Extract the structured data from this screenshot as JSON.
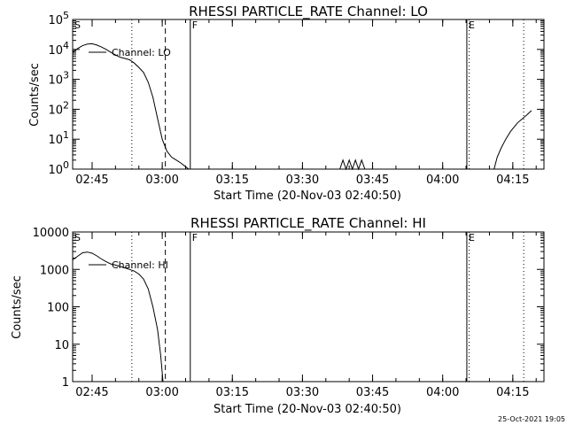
{
  "chart_data": [
    {
      "type": "line",
      "title": "RHESSI PARTICLE_RATE Channel: LO",
      "xlabel": "Start Time (20-Nov-03 02:40:50)",
      "ylabel": "Counts/sec",
      "yscale": "log",
      "ylim": [
        1,
        100000
      ],
      "xlim": [
        "02:40:50",
        "04:21:40"
      ],
      "xticks": [
        "02:45",
        "03:00",
        "03:15",
        "03:30",
        "03:45",
        "04:00",
        "04:15"
      ],
      "yticks": [
        "10^0",
        "10^1",
        "10^2",
        "10^3",
        "10^4",
        "10^5"
      ],
      "legend": "Channel: LO",
      "markers": [
        {
          "label": "S",
          "time": "02:40:50",
          "style": "solid"
        },
        {
          "label": "",
          "time": "02:53:30",
          "style": "dotted"
        },
        {
          "label": "",
          "time": "03:00:40",
          "style": "dashed"
        },
        {
          "label": "F",
          "time": "03:06:00",
          "style": "solid"
        },
        {
          "label": "E",
          "time": "04:05:10",
          "style": "solid"
        },
        {
          "label": "",
          "time": "04:05:40",
          "style": "dotted"
        },
        {
          "label": "",
          "time": "04:17:20",
          "style": "dotted"
        }
      ],
      "series": [
        {
          "name": "Channel: LO",
          "segments": [
            [
              [
                "02:40:50",
                8000
              ],
              [
                "02:42:00",
                11000
              ],
              [
                "02:43:00",
                13500
              ],
              [
                "02:44:00",
                15000
              ],
              [
                "02:45:00",
                15500
              ],
              [
                "02:46:00",
                14000
              ],
              [
                "02:47:00",
                12000
              ],
              [
                "02:48:00",
                10000
              ],
              [
                "02:49:00",
                8000
              ],
              [
                "02:50:00",
                6500
              ],
              [
                "02:51:00",
                5500
              ],
              [
                "02:52:00",
                5000
              ],
              [
                "02:53:00",
                4500
              ],
              [
                "02:54:00",
                3500
              ],
              [
                "02:55:00",
                2500
              ],
              [
                "02:56:00",
                1700
              ],
              [
                "02:57:00",
                800
              ],
              [
                "02:58:00",
                250
              ],
              [
                "02:59:00",
                50
              ],
              [
                "03:00:00",
                10
              ],
              [
                "03:01:00",
                4
              ],
              [
                "03:02:00",
                2.5
              ],
              [
                "03:03:00",
                2
              ],
              [
                "03:04:00",
                1.6
              ],
              [
                "03:05:00",
                1.2
              ],
              [
                "03:05:40",
                1
              ]
            ],
            [
              [
                "03:38:00",
                1
              ],
              [
                "03:38:40",
                2
              ],
              [
                "03:39:20",
                1
              ],
              [
                "03:40:00",
                2
              ],
              [
                "03:40:40",
                1
              ],
              [
                "03:41:20",
                2
              ],
              [
                "03:42:00",
                1
              ],
              [
                "03:42:40",
                2
              ],
              [
                "03:43:20",
                1
              ]
            ],
            [
              [
                "04:11:00",
                1
              ],
              [
                "04:11:40",
                2.5
              ],
              [
                "04:12:30",
                5
              ],
              [
                "04:13:30",
                10
              ],
              [
                "04:14:30",
                18
              ],
              [
                "04:16:00",
                35
              ],
              [
                "04:18:00",
                65
              ],
              [
                "04:19:00",
                90
              ]
            ]
          ]
        }
      ]
    },
    {
      "type": "line",
      "title": "RHESSI PARTICLE_RATE Channel: HI",
      "xlabel": "Start Time (20-Nov-03 02:40:50)",
      "ylabel": "Counts/sec",
      "yscale": "log",
      "ylim": [
        1,
        10000
      ],
      "xlim": [
        "02:40:50",
        "04:21:40"
      ],
      "xticks": [
        "02:45",
        "03:00",
        "03:15",
        "03:30",
        "03:45",
        "04:00",
        "04:15"
      ],
      "yticks": [
        "1",
        "10",
        "100",
        "1000",
        "10000"
      ],
      "legend": "Channel: HI",
      "markers": [
        {
          "label": "S",
          "time": "02:40:50",
          "style": "solid"
        },
        {
          "label": "",
          "time": "02:53:30",
          "style": "dotted"
        },
        {
          "label": "",
          "time": "03:00:40",
          "style": "dashed"
        },
        {
          "label": "F",
          "time": "03:06:00",
          "style": "solid"
        },
        {
          "label": "E",
          "time": "04:05:10",
          "style": "solid"
        },
        {
          "label": "",
          "time": "04:05:40",
          "style": "dotted"
        },
        {
          "label": "",
          "time": "04:17:20",
          "style": "dotted"
        }
      ],
      "series": [
        {
          "name": "Channel: HI",
          "segments": [
            [
              [
                "02:40:50",
                1800
              ],
              [
                "02:42:00",
                2300
              ],
              [
                "02:43:00",
                2800
              ],
              [
                "02:44:00",
                2900
              ],
              [
                "02:45:00",
                2700
              ],
              [
                "02:46:00",
                2300
              ],
              [
                "02:47:00",
                1900
              ],
              [
                "02:48:00",
                1600
              ],
              [
                "02:49:00",
                1400
              ],
              [
                "02:50:00",
                1300
              ],
              [
                "02:51:00",
                1200
              ],
              [
                "02:52:00",
                1100
              ],
              [
                "02:53:00",
                1000
              ],
              [
                "02:54:00",
                900
              ],
              [
                "02:55:00",
                750
              ],
              [
                "02:56:00",
                550
              ],
              [
                "02:57:00",
                300
              ],
              [
                "02:58:00",
                100
              ],
              [
                "02:59:00",
                25
              ],
              [
                "02:59:40",
                5
              ],
              [
                "03:00:10",
                1
              ]
            ]
          ]
        }
      ]
    }
  ],
  "timestamp": "25-Oct-2021 19:05"
}
